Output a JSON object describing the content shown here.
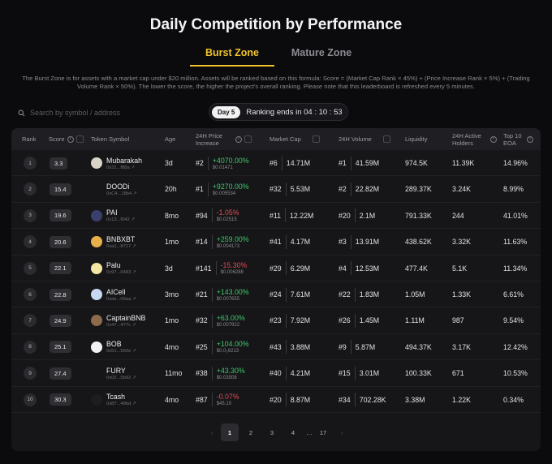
{
  "page_title": "Daily Competition by Performance",
  "tabs": [
    {
      "label": "Burst Zone",
      "active": true
    },
    {
      "label": "Mature Zone",
      "active": false
    }
  ],
  "description": "The Burst Zone is for assets with a market cap under $20 million. Assets will be ranked based on this formula: Score = (Market Cap Rank × 45%) + (Price Increase Rank × 5%) + (Trading Volume Rank × 50%). The lower the score, the higher the project's overall ranking. Please note that this leaderboard is refreshed every 5 minutes.",
  "search": {
    "placeholder": "Search by symbol / address",
    "value": ""
  },
  "round": {
    "day_label": "Day 5",
    "ranking_text": "Ranking ends in 04 : 10 : 53"
  },
  "columns": {
    "rank": "Rank",
    "score": "Score",
    "token": "Token Symbol",
    "age": "Age",
    "price_increase": "24H Price Increase",
    "market_cap": "Market Cap",
    "volume": "24H Volume",
    "liquidity": "Liquidity",
    "holders": "24H Active Holders",
    "top10": "Top 10 EOA"
  },
  "rows": [
    {
      "rank": "1",
      "score": "3.3",
      "name": "Mubarakah",
      "addr": "0x31...f88a ↗",
      "icon_color": "#d9d4c6",
      "age": "3d",
      "pi_rank": "#2",
      "pi_pct": "+4070.00%",
      "pi_dir": "up",
      "price": "$0.01471",
      "mc_rank": "#6",
      "mc": "14.71M",
      "vol_rank": "#1",
      "vol": "41.59M",
      "liquidity": "974.5K",
      "holders": "11.39K",
      "top10": "14.96%"
    },
    {
      "rank": "2",
      "score": "15.4",
      "name": "DOODi",
      "addr": "0xC4...18b4 ↗",
      "icon_color": "",
      "age": "20h",
      "pi_rank": "#1",
      "pi_pct": "+9270.00%",
      "pi_dir": "up",
      "price": "$0.005534",
      "mc_rank": "#32",
      "mc": "5.53M",
      "vol_rank": "#2",
      "vol": "22.82M",
      "liquidity": "289.37K",
      "holders": "3.24K",
      "top10": "8.99%"
    },
    {
      "rank": "3",
      "score": "19.6",
      "name": "PAI",
      "addr": "0x13...f042 ↗",
      "icon_color": "#3a3f6b",
      "age": "8mo",
      "pi_rank": "#94",
      "pi_pct": "-1.05%",
      "pi_dir": "down",
      "price": "$0.02515",
      "mc_rank": "#11",
      "mc": "12.22M",
      "vol_rank": "#20",
      "vol": "2.1M",
      "liquidity": "791.33K",
      "holders": "244",
      "top10": "41.01%"
    },
    {
      "rank": "4",
      "score": "20.6",
      "name": "BNBXBT",
      "addr": "0xa1...8717 ↗",
      "icon_color": "#e8b04a",
      "age": "1mo",
      "pi_rank": "#14",
      "pi_pct": "+259.00%",
      "pi_dir": "up",
      "price": "$0.004173",
      "mc_rank": "#41",
      "mc": "4.17M",
      "vol_rank": "#3",
      "vol": "13.91M",
      "liquidity": "438.62K",
      "holders": "3.32K",
      "top10": "11.63%"
    },
    {
      "rank": "5",
      "score": "22.1",
      "name": "Palu",
      "addr": "0x97...0483 ↗",
      "icon_color": "#f3e6a0",
      "age": "3d",
      "pi_rank": "#141",
      "pi_pct": "-15.30%",
      "pi_dir": "down",
      "price": "$0.006288",
      "mc_rank": "#29",
      "mc": "6.29M",
      "vol_rank": "#4",
      "vol": "12.53M",
      "liquidity": "477.4K",
      "holders": "5.1K",
      "top10": "11.34%"
    },
    {
      "rank": "6",
      "score": "22.8",
      "name": "AICell",
      "addr": "0xde...09aa ↗",
      "icon_color": "#c7d9f2",
      "age": "3mo",
      "pi_rank": "#21",
      "pi_pct": "+143.00%",
      "pi_dir": "up",
      "price": "$0.007655",
      "mc_rank": "#24",
      "mc": "7.61M",
      "vol_rank": "#22",
      "vol": "1.83M",
      "liquidity": "1.05M",
      "holders": "1.33K",
      "top10": "6.61%"
    },
    {
      "rank": "7",
      "score": "24.9",
      "name": "CaptainBNB",
      "addr": "0x47...477c ↗",
      "icon_color": "#8c6a4a",
      "age": "1mo",
      "pi_rank": "#32",
      "pi_pct": "+63.00%",
      "pi_dir": "up",
      "price": "$0.007922",
      "mc_rank": "#23",
      "mc": "7.92M",
      "vol_rank": "#26",
      "vol": "1.45M",
      "liquidity": "1.11M",
      "holders": "987",
      "top10": "9.54%"
    },
    {
      "rank": "8",
      "score": "25.1",
      "name": "BOB",
      "addr": "0x51...560e ↗",
      "icon_color": "#f2f2f2",
      "age": "4mo",
      "pi_rank": "#25",
      "pi_pct": "+104.00%",
      "pi_dir": "up",
      "price": "$0.0₅9213",
      "mc_rank": "#43",
      "mc": "3.88M",
      "vol_rank": "#9",
      "vol": "5.87M",
      "liquidity": "494.37K",
      "holders": "3.17K",
      "top10": "12.42%"
    },
    {
      "rank": "9",
      "score": "27.4",
      "name": "FURY",
      "addr": "0x02...5b92 ↗",
      "icon_color": "",
      "age": "11mo",
      "pi_rank": "#38",
      "pi_pct": "+43.30%",
      "pi_dir": "up",
      "price": "$0.03508",
      "mc_rank": "#40",
      "mc": "4.21M",
      "vol_rank": "#15",
      "vol": "3.01M",
      "liquidity": "100.33K",
      "holders": "671",
      "top10": "10.53%"
    },
    {
      "rank": "10",
      "score": "30.3",
      "name": "Tcash",
      "addr": "0x87...48bd ↗",
      "icon_color": "#1d1d1d",
      "age": "4mo",
      "pi_rank": "#87",
      "pi_pct": "-0.07%",
      "pi_dir": "down",
      "price": "$45.10",
      "mc_rank": "#20",
      "mc": "8.87M",
      "vol_rank": "#34",
      "vol": "702.28K",
      "liquidity": "3.38M",
      "holders": "1.22K",
      "top10": "0.34%"
    }
  ],
  "pagination": {
    "prev": "‹",
    "pages": [
      "1",
      "2",
      "3",
      "4",
      "…",
      "17"
    ],
    "active": "1",
    "next": "›"
  },
  "colors": {
    "accent": "#f0c32d",
    "up": "#41c76b",
    "down": "#e14d54"
  }
}
